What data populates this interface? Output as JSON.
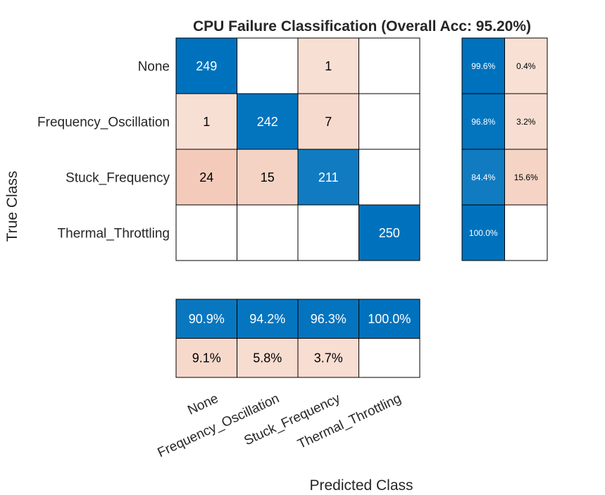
{
  "chart_data": {
    "type": "heatmap",
    "title": "CPU Failure Classification (Overall Acc: 95.20%)",
    "xlabel": "Predicted Class",
    "ylabel": "True Class",
    "classes": [
      "None",
      "Frequency_Oscillation",
      "Stuck_Frequency",
      "Thermal_Throttling"
    ],
    "matrix": [
      [
        249,
        0,
        1,
        0
      ],
      [
        1,
        242,
        7,
        0
      ],
      [
        24,
        15,
        211,
        0
      ],
      [
        0,
        0,
        0,
        250
      ]
    ],
    "row_summary": [
      [
        "99.6%",
        "0.4%"
      ],
      [
        "96.8%",
        "3.2%"
      ],
      [
        "84.4%",
        "15.6%"
      ],
      [
        "100.0%",
        ""
      ]
    ],
    "column_summary": [
      [
        "90.9%",
        "94.2%",
        "96.3%",
        "100.0%"
      ],
      [
        "9.1%",
        "5.8%",
        "3.7%",
        ""
      ]
    ],
    "colors": {
      "correct": "#0072bd",
      "incorrect": "#d95319",
      "background": "#ffffff",
      "grid": "#000000"
    }
  }
}
